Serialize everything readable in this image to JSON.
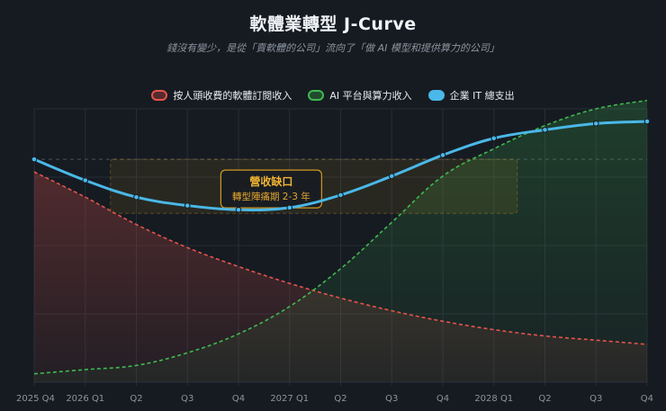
{
  "title": "軟體業轉型 J-Curve",
  "subtitle": "錢沒有變少，是從「賣軟體的公司」流向了「做 AI 模型和提供算力的公司」",
  "colors": {
    "background": "#161b22",
    "grid": "#262c36",
    "subscription": "#e5534b",
    "ai": "#3fb950",
    "it_spend": "#4ab8e8",
    "gap": "#d29922"
  },
  "chart_data": {
    "type": "line",
    "categories": [
      "2025 Q4",
      "2026 Q1",
      "Q2",
      "Q3",
      "Q4",
      "2027 Q1",
      "Q2",
      "Q3",
      "Q4",
      "2028 Q1",
      "Q2",
      "Q3",
      "Q4"
    ],
    "series": [
      {
        "name": "按人頭收費的軟體訂閱收入",
        "style": "dashed-area",
        "values": [
          100,
          88,
          75,
          64,
          55,
          47,
          40,
          34,
          29,
          25,
          22,
          20,
          18
        ]
      },
      {
        "name": "AI 平台與算力收入",
        "style": "dashed-area",
        "values": [
          4,
          6,
          8,
          14,
          23,
          36,
          54,
          76,
          98,
          111,
          122,
          130,
          134
        ]
      },
      {
        "name": "企業 IT 總支出",
        "style": "solid-with-points",
        "values": [
          106,
          96,
          88,
          84,
          82,
          83,
          89,
          98,
          108,
          116,
          120,
          123,
          124
        ]
      }
    ],
    "ylim": [
      0,
      130
    ],
    "grid": true,
    "legend_position": "top",
    "annotation": {
      "title": "營收缺口",
      "subtitle": "轉型陣痛期 2-3 年",
      "range_start": "2026 Q1",
      "range_end": "2028 Q1"
    }
  }
}
